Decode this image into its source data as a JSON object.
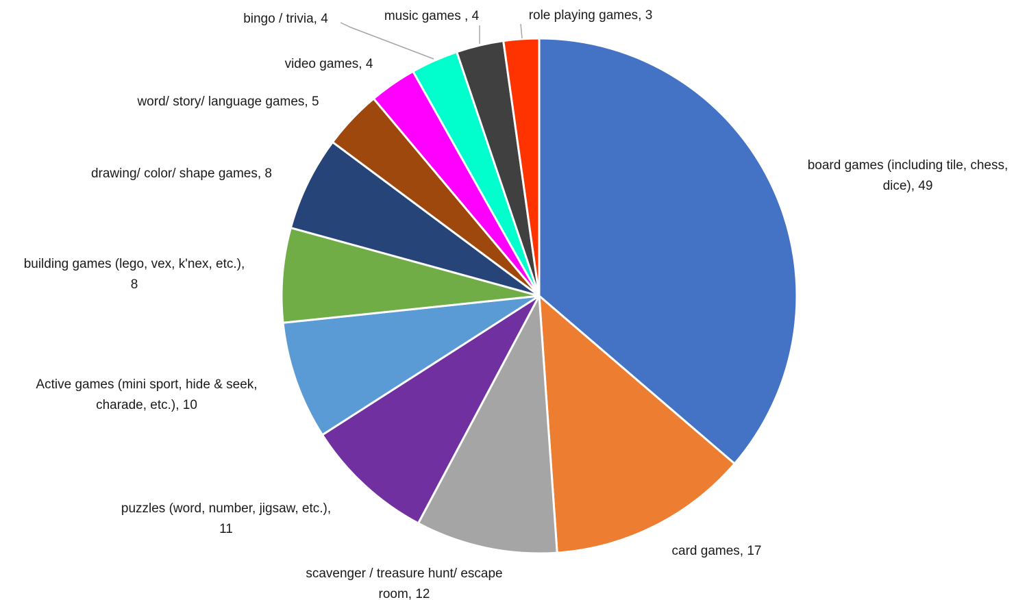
{
  "chart_data": {
    "type": "pie",
    "title": "",
    "slices": [
      {
        "label": "board games (including tile, chess, dice)",
        "value": 49,
        "label_lines": [
          "board games (including tile, chess,",
          "dice), 49"
        ],
        "color": "#4472C4"
      },
      {
        "label": "card games",
        "value": 17,
        "label_lines": [
          "card games, 17"
        ],
        "color": "#ED7D31"
      },
      {
        "label": "scavenger / treasure hunt/ escape room",
        "value": 12,
        "label_lines": [
          "scavenger / treasure hunt/ escape",
          "room, 12"
        ],
        "color": "#A5A5A5"
      },
      {
        "label": "puzzles (word, number, jigsaw, etc.)",
        "value": 11,
        "label_lines": [
          "puzzles (word, number, jigsaw, etc.),",
          "11"
        ],
        "color": "#7030A0"
      },
      {
        "label": "Active games (mini sport, hide & seek, charade, etc.)",
        "value": 10,
        "label_lines": [
          "Active games (mini sport, hide & seek,",
          "charade, etc.), 10"
        ],
        "color": "#5B9BD5"
      },
      {
        "label": "building games (lego, vex, k'nex, etc.)",
        "value": 8,
        "label_lines": [
          "building games (lego, vex, k'nex, etc.),",
          "8"
        ],
        "color": "#70AD47"
      },
      {
        "label": "drawing/ color/ shape games",
        "value": 8,
        "label_lines": [
          "drawing/ color/ shape games, 8"
        ],
        "color": "#264478"
      },
      {
        "label": "word/ story/ language games",
        "value": 5,
        "label_lines": [
          "word/ story/ language games, 5"
        ],
        "color": "#9E480E"
      },
      {
        "label": "video games",
        "value": 4,
        "label_lines": [
          "video games, 4"
        ],
        "color": "#FF00FF"
      },
      {
        "label": "bingo / trivia",
        "value": 4,
        "label_lines": [
          "bingo / trivia, 4"
        ],
        "color": "#00FFCC"
      },
      {
        "label": "music games",
        "value": 4,
        "label_lines": [
          "music games , 4"
        ],
        "color": "#404040"
      },
      {
        "label": "role playing games",
        "value": 3,
        "label_lines": [
          "role playing games, 3"
        ],
        "color": "#FF3300"
      }
    ]
  }
}
